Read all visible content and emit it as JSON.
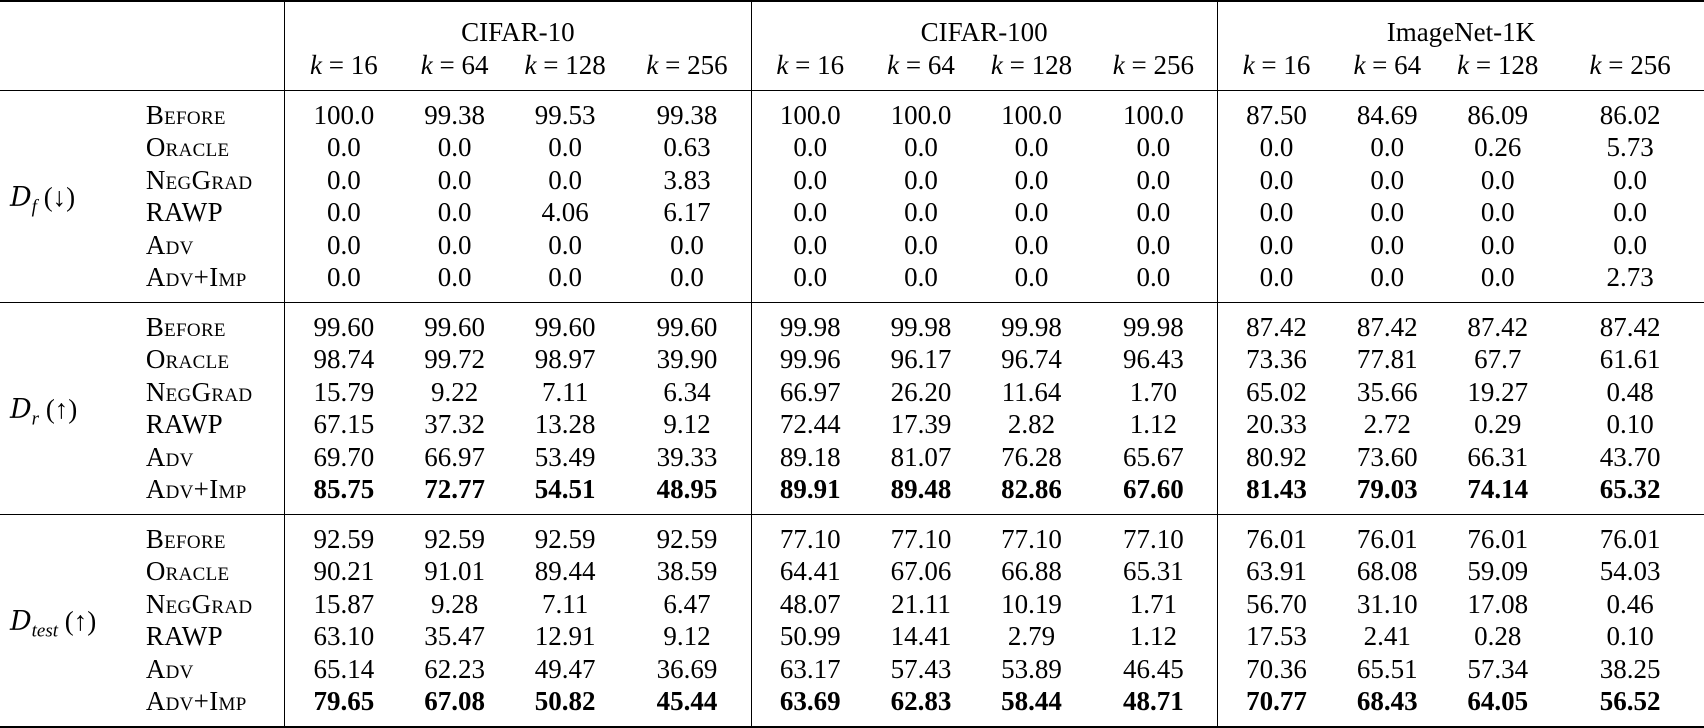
{
  "datasets": [
    "CIFAR-10",
    "CIFAR-100",
    "ImageNet-1K"
  ],
  "k_values": [
    "16",
    "64",
    "128",
    "256"
  ],
  "k_var": "k",
  "k_eq": " = ",
  "groups": [
    {
      "split_letter": "D",
      "split_sub": "f",
      "arrow": "(↓)",
      "rows": [
        {
          "method": "Before",
          "values": [
            "100.0",
            "99.38",
            "99.53",
            "99.38",
            "100.0",
            "100.0",
            "100.0",
            "100.0",
            "87.50",
            "84.69",
            "86.09",
            "86.02"
          ]
        },
        {
          "method": "Oracle",
          "values": [
            "0.0",
            "0.0",
            "0.0",
            "0.63",
            "0.0",
            "0.0",
            "0.0",
            "0.0",
            "0.0",
            "0.0",
            "0.26",
            "5.73"
          ]
        },
        {
          "method": "NegGrad",
          "values": [
            "0.0",
            "0.0",
            "0.0",
            "3.83",
            "0.0",
            "0.0",
            "0.0",
            "0.0",
            "0.0",
            "0.0",
            "0.0",
            "0.0"
          ]
        },
        {
          "method": "RAWP",
          "values": [
            "0.0",
            "0.0",
            "4.06",
            "6.17",
            "0.0",
            "0.0",
            "0.0",
            "0.0",
            "0.0",
            "0.0",
            "0.0",
            "0.0"
          ]
        },
        {
          "method": "Adv",
          "values": [
            "0.0",
            "0.0",
            "0.0",
            "0.0",
            "0.0",
            "0.0",
            "0.0",
            "0.0",
            "0.0",
            "0.0",
            "0.0",
            "0.0"
          ]
        },
        {
          "method": "Adv+Imp",
          "values": [
            "0.0",
            "0.0",
            "0.0",
            "0.0",
            "0.0",
            "0.0",
            "0.0",
            "0.0",
            "0.0",
            "0.0",
            "0.0",
            "2.73"
          ]
        }
      ]
    },
    {
      "split_letter": "D",
      "split_sub": "r",
      "arrow": "(↑)",
      "rows": [
        {
          "method": "Before",
          "values": [
            "99.60",
            "99.60",
            "99.60",
            "99.60",
            "99.98",
            "99.98",
            "99.98",
            "99.98",
            "87.42",
            "87.42",
            "87.42",
            "87.42"
          ]
        },
        {
          "method": "Oracle",
          "values": [
            "98.74",
            "99.72",
            "98.97",
            "39.90",
            "99.96",
            "96.17",
            "96.74",
            "96.43",
            "73.36",
            "77.81",
            "67.7",
            "61.61"
          ]
        },
        {
          "method": "NegGrad",
          "values": [
            "15.79",
            "9.22",
            "7.11",
            "6.34",
            "66.97",
            "26.20",
            "11.64",
            "1.70",
            "65.02",
            "35.66",
            "19.27",
            "0.48"
          ]
        },
        {
          "method": "RAWP",
          "values": [
            "67.15",
            "37.32",
            "13.28",
            "9.12",
            "72.44",
            "17.39",
            "2.82",
            "1.12",
            "20.33",
            "2.72",
            "0.29",
            "0.10"
          ]
        },
        {
          "method": "Adv",
          "values": [
            "69.70",
            "66.97",
            "53.49",
            "39.33",
            "89.18",
            "81.07",
            "76.28",
            "65.67",
            "80.92",
            "73.60",
            "66.31",
            "43.70"
          ]
        },
        {
          "method": "Adv+Imp",
          "bold": true,
          "values": [
            "85.75",
            "72.77",
            "54.51",
            "48.95",
            "89.91",
            "89.48",
            "82.86",
            "67.60",
            "81.43",
            "79.03",
            "74.14",
            "65.32"
          ]
        }
      ]
    },
    {
      "split_letter": "D",
      "split_sub": "test",
      "arrow": "(↑)",
      "rows": [
        {
          "method": "Before",
          "values": [
            "92.59",
            "92.59",
            "92.59",
            "92.59",
            "77.10",
            "77.10",
            "77.10",
            "77.10",
            "76.01",
            "76.01",
            "76.01",
            "76.01"
          ]
        },
        {
          "method": "Oracle",
          "values": [
            "90.21",
            "91.01",
            "89.44",
            "38.59",
            "64.41",
            "67.06",
            "66.88",
            "65.31",
            "63.91",
            "68.08",
            "59.09",
            "54.03"
          ]
        },
        {
          "method": "NegGrad",
          "values": [
            "15.87",
            "9.28",
            "7.11",
            "6.47",
            "48.07",
            "21.11",
            "10.19",
            "1.71",
            "56.70",
            "31.10",
            "17.08",
            "0.46"
          ]
        },
        {
          "method": "RAWP",
          "values": [
            "63.10",
            "35.47",
            "12.91",
            "9.12",
            "50.99",
            "14.41",
            "2.79",
            "1.12",
            "17.53",
            "2.41",
            "0.28",
            "0.10"
          ]
        },
        {
          "method": "Adv",
          "values": [
            "65.14",
            "62.23",
            "49.47",
            "36.69",
            "63.17",
            "57.43",
            "53.89",
            "46.45",
            "70.36",
            "65.51",
            "57.34",
            "38.25"
          ]
        },
        {
          "method": "Adv+Imp",
          "bold": true,
          "values": [
            "79.65",
            "67.08",
            "50.82",
            "45.44",
            "63.69",
            "62.83",
            "58.44",
            "48.71",
            "70.77",
            "68.43",
            "64.05",
            "56.52"
          ]
        }
      ]
    }
  ]
}
